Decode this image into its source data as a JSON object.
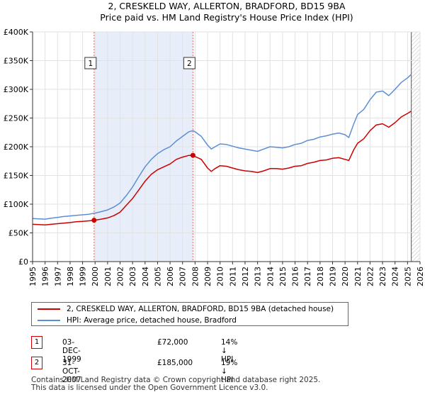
{
  "chart_data": {
    "type": "line",
    "title": "2, CRESKELD WAY, ALLERTON, BRADFORD, BD15 9BA",
    "subtitle": "Price paid vs. HM Land Registry's House Price Index (HPI)",
    "xlim": [
      1995,
      2026
    ],
    "ylim": [
      0,
      400000
    ],
    "x_ticks": [
      "1995",
      "1996",
      "1997",
      "1998",
      "1999",
      "2000",
      "2001",
      "2002",
      "2003",
      "2004",
      "2005",
      "2006",
      "2007",
      "2008",
      "2009",
      "2010",
      "2011",
      "2012",
      "2013",
      "2014",
      "2015",
      "2016",
      "2017",
      "2018",
      "2019",
      "2020",
      "2021",
      "2022",
      "2023",
      "2024",
      "2025",
      "2026"
    ],
    "y_ticks": [
      {
        "value": 0,
        "label": "£0"
      },
      {
        "value": 50000,
        "label": "£50K"
      },
      {
        "value": 100000,
        "label": "£100K"
      },
      {
        "value": 150000,
        "label": "£150K"
      },
      {
        "value": 200000,
        "label": "£200K"
      },
      {
        "value": 250000,
        "label": "£250K"
      },
      {
        "value": 300000,
        "label": "£300K"
      },
      {
        "value": 350000,
        "label": "£350K"
      },
      {
        "value": 400000,
        "label": "£400K"
      }
    ],
    "grid": true,
    "series": [
      {
        "name": "2, CRESKELD WAY, ALLERTON, BRADFORD, BD15 9BA (detached house)",
        "color": "#cc0000",
        "x": [
          1995,
          1995.5,
          1996,
          1996.5,
          1997,
          1997.5,
          1998,
          1998.5,
          1999,
          1999.5,
          1999.92,
          2000.5,
          2001,
          2001.5,
          2002,
          2002.5,
          2003,
          2003.5,
          2004,
          2004.5,
          2005,
          2005.5,
          2006,
          2006.5,
          2007,
          2007.5,
          2007.83,
          2008,
          2008.5,
          2009,
          2009.3,
          2009.6,
          2010,
          2010.5,
          2011,
          2011.5,
          2012,
          2012.5,
          2013,
          2013.5,
          2014,
          2014.5,
          2015,
          2015.5,
          2016,
          2016.5,
          2017,
          2017.5,
          2018,
          2018.5,
          2019,
          2019.5,
          2020,
          2020.3,
          2020.7,
          2021,
          2021.5,
          2022,
          2022.5,
          2023,
          2023.5,
          2024,
          2024.5,
          2025,
          2025.3
        ],
        "y": [
          65000,
          64500,
          64000,
          65000,
          66000,
          67000,
          68000,
          69500,
          70000,
          71000,
          72000,
          74000,
          76000,
          80000,
          86000,
          98000,
          110000,
          125000,
          140000,
          152000,
          160000,
          165000,
          170000,
          178000,
          182000,
          185000,
          185000,
          183000,
          178000,
          163000,
          157000,
          162000,
          167000,
          166000,
          163000,
          160000,
          158000,
          157000,
          155000,
          158000,
          162000,
          162000,
          161000,
          163000,
          166000,
          167000,
          171000,
          173000,
          176000,
          177000,
          180000,
          181000,
          178000,
          176000,
          195000,
          206000,
          214000,
          228000,
          238000,
          240000,
          234000,
          242000,
          252000,
          258000,
          262000
        ]
      },
      {
        "name": "HPI: Average price, detached house, Bradford",
        "color": "#5b8fd4",
        "x": [
          1995,
          1995.5,
          1996,
          1996.5,
          1997,
          1997.5,
          1998,
          1998.5,
          1999,
          1999.5,
          2000,
          2000.5,
          2001,
          2001.5,
          2002,
          2002.5,
          2003,
          2003.5,
          2004,
          2004.5,
          2005,
          2005.5,
          2006,
          2006.5,
          2007,
          2007.5,
          2007.83,
          2008,
          2008.5,
          2009,
          2009.3,
          2009.6,
          2010,
          2010.5,
          2011,
          2011.5,
          2012,
          2012.5,
          2013,
          2013.5,
          2014,
          2014.5,
          2015,
          2015.5,
          2016,
          2016.5,
          2017,
          2017.5,
          2018,
          2018.5,
          2019,
          2019.5,
          2020,
          2020.3,
          2020.7,
          2021,
          2021.5,
          2022,
          2022.5,
          2023,
          2023.5,
          2024,
          2024.5,
          2025,
          2025.3
        ],
        "y": [
          75000,
          74500,
          74000,
          75500,
          77000,
          78500,
          79500,
          80500,
          81500,
          82500,
          84500,
          87000,
          90000,
          95000,
          102000,
          115000,
          130000,
          148000,
          165000,
          178000,
          188000,
          195000,
          200000,
          210000,
          218000,
          226000,
          228000,
          226000,
          218000,
          203000,
          196000,
          200000,
          205000,
          204000,
          201000,
          198000,
          196000,
          194000,
          192000,
          196000,
          200000,
          199000,
          198000,
          200000,
          204000,
          206000,
          211000,
          213000,
          217000,
          219000,
          222000,
          224000,
          221000,
          216000,
          240000,
          256000,
          265000,
          282000,
          295000,
          297000,
          289000,
          300000,
          312000,
          320000,
          326000
        ]
      }
    ],
    "sales": [
      {
        "label": "1",
        "x": 1999.92,
        "y": 72000,
        "date": "03-DEC-1999",
        "price": "£72,000",
        "hpi": "14% ↓ HPI"
      },
      {
        "label": "2",
        "x": 2007.83,
        "y": 185000,
        "date": "31-OCT-2007",
        "price": "£185,000",
        "hpi": "19% ↓ HPI"
      }
    ],
    "legend_position": "below"
  },
  "footer": {
    "text": "Contains HM Land Registry data © Crown copyright and database right 2025.\nThis data is licensed under the Open Government Licence v3.0."
  }
}
